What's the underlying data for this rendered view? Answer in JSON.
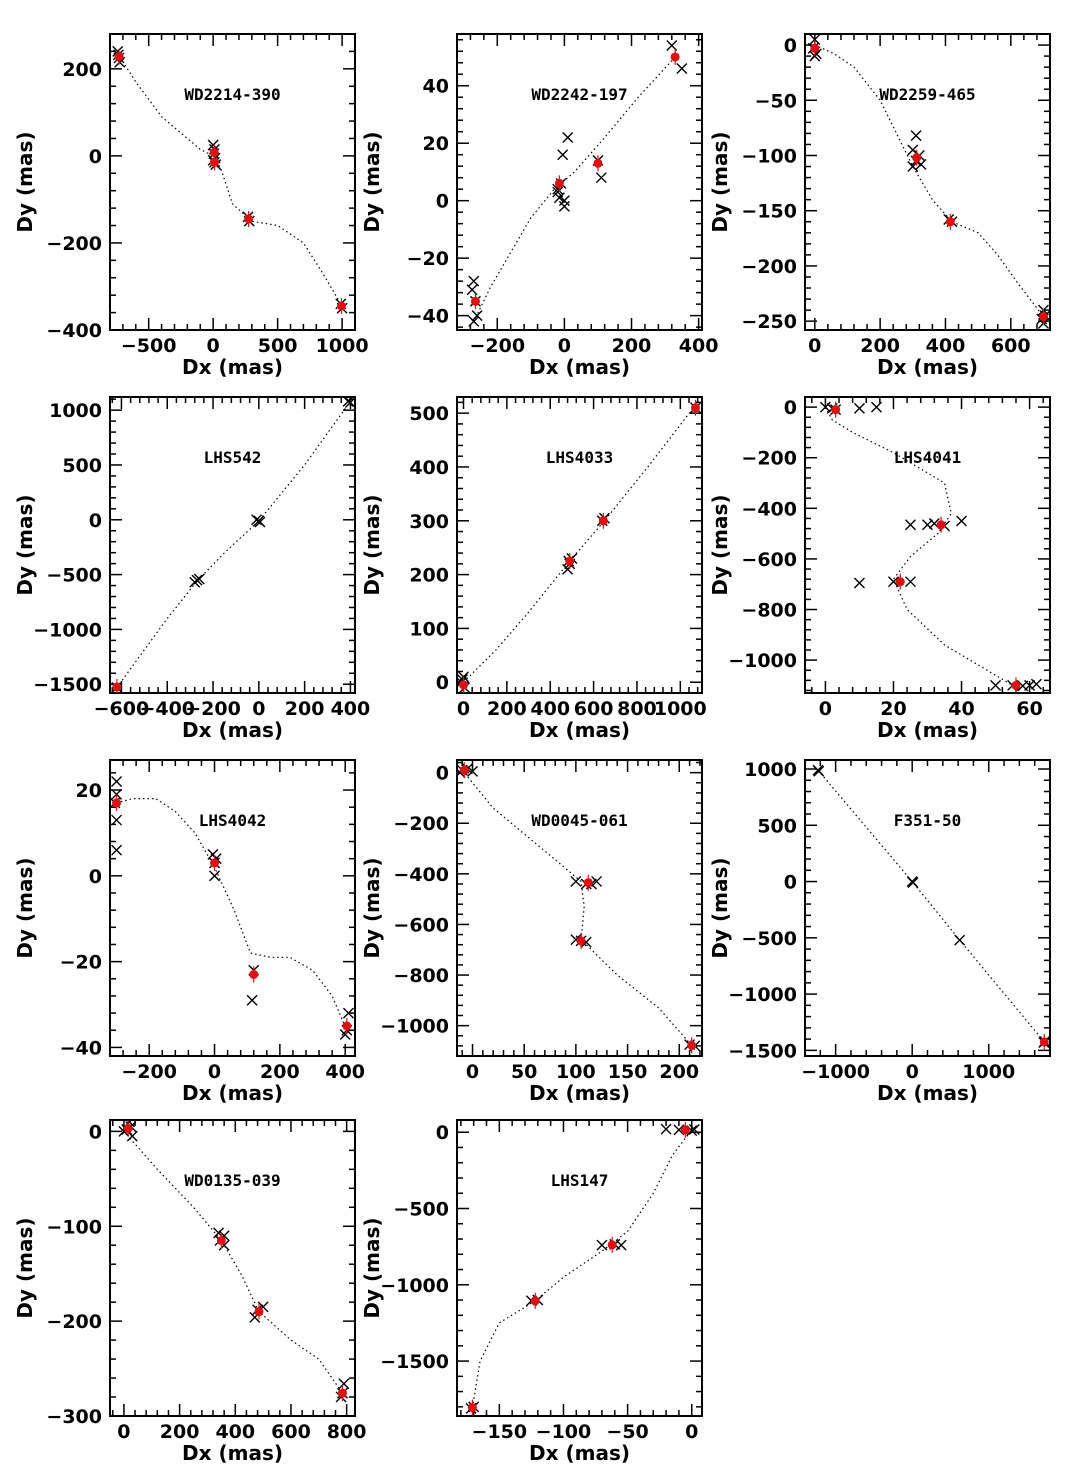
{
  "figure": {
    "colors": {
      "axis": "#000000",
      "cross": "#000000",
      "mean_point": "#dd1111",
      "model_curve": "#000000"
    },
    "x_label_text": "Dx (mas)",
    "y_label_text": "Dy (mas)"
  },
  "chart_data": [
    {
      "type": "scatter",
      "title": "WD2214-390",
      "xlabel": "Dx (mas)",
      "ylabel": "Dy (mas)",
      "xlim": [
        -800,
        1100
      ],
      "ylim": [
        -400,
        280
      ],
      "xticks": [
        -500,
        0,
        500,
        1000
      ],
      "yticks": [
        -400,
        -200,
        0,
        200
      ],
      "crosses": [
        [
          -740,
          240
        ],
        [
          -730,
          225
        ],
        [
          -725,
          215
        ],
        [
          -735,
          232
        ],
        [
          0,
          25
        ],
        [
          10,
          15
        ],
        [
          5,
          5
        ],
        [
          15,
          -5
        ],
        [
          10,
          -15
        ],
        [
          20,
          -20
        ],
        [
          0,
          -10
        ],
        [
          270,
          -140
        ],
        [
          280,
          -150
        ],
        [
          990,
          -340
        ],
        [
          1000,
          -350
        ]
      ],
      "means": [
        [
          -730,
          228
        ],
        [
          8,
          8
        ],
        [
          10,
          -15
        ],
        [
          275,
          -145
        ],
        [
          995,
          -345
        ]
      ],
      "curve": [
        [
          -740,
          235
        ],
        [
          -600,
          170
        ],
        [
          -400,
          90
        ],
        [
          -200,
          40
        ],
        [
          -100,
          15
        ],
        [
          0,
          0
        ],
        [
          60,
          -30
        ],
        [
          150,
          -110
        ],
        [
          300,
          -150
        ],
        [
          500,
          -160
        ],
        [
          700,
          -200
        ],
        [
          850,
          -270
        ],
        [
          1000,
          -345
        ]
      ]
    },
    {
      "type": "scatter",
      "title": "WD2242-197",
      "xlabel": "Dx (mas)",
      "ylabel": "Dy (mas)",
      "xlim": [
        -320,
        410
      ],
      "ylim": [
        -45,
        58
      ],
      "xticks": [
        -200,
        0,
        200,
        400
      ],
      "yticks": [
        -40,
        -20,
        0,
        20,
        40
      ],
      "crosses": [
        [
          320,
          54
        ],
        [
          350,
          46
        ],
        [
          -270,
          -28
        ],
        [
          -275,
          -31
        ],
        [
          -265,
          -35
        ],
        [
          -260,
          -40
        ],
        [
          -270,
          -42
        ],
        [
          -20,
          4
        ],
        [
          -10,
          6
        ],
        [
          -15,
          1
        ],
        [
          0,
          0
        ],
        [
          0,
          -2
        ],
        [
          -5,
          16
        ],
        [
          10,
          22
        ],
        [
          -20,
          3
        ],
        [
          100,
          14
        ],
        [
          110,
          8
        ]
      ],
      "means": [
        [
          330,
          50
        ],
        [
          -265,
          -35
        ],
        [
          -15,
          6
        ],
        [
          100,
          13
        ]
      ],
      "curve": [
        [
          -270,
          -42
        ],
        [
          -220,
          -30
        ],
        [
          -160,
          -18
        ],
        [
          -100,
          -6
        ],
        [
          -30,
          4
        ],
        [
          30,
          10
        ],
        [
          120,
          22
        ],
        [
          220,
          36
        ],
        [
          330,
          50
        ]
      ]
    },
    {
      "type": "scatter",
      "title": "WD2259-465",
      "xlabel": "Dx (mas)",
      "ylabel": "Dy (mas)",
      "xlim": [
        -30,
        720
      ],
      "ylim": [
        -258,
        10
      ],
      "xticks": [
        0,
        200,
        400,
        600
      ],
      "yticks": [
        -250,
        -200,
        -150,
        -100,
        -50,
        0
      ],
      "crosses": [
        [
          0,
          5
        ],
        [
          -5,
          -3
        ],
        [
          5,
          -8
        ],
        [
          0,
          -10
        ],
        [
          310,
          -82
        ],
        [
          300,
          -95
        ],
        [
          320,
          -100
        ],
        [
          310,
          -105
        ],
        [
          300,
          -110
        ],
        [
          325,
          -108
        ],
        [
          420,
          -160
        ],
        [
          410,
          -158
        ],
        [
          700,
          -240
        ],
        [
          705,
          -245
        ],
        [
          695,
          -248
        ],
        [
          700,
          -252
        ]
      ],
      "means": [
        [
          0,
          -3
        ],
        [
          312,
          -102
        ],
        [
          415,
          -160
        ],
        [
          700,
          -246
        ]
      ],
      "curve": [
        [
          0,
          0
        ],
        [
          60,
          -8
        ],
        [
          120,
          -20
        ],
        [
          200,
          -50
        ],
        [
          250,
          -80
        ],
        [
          300,
          -110
        ],
        [
          360,
          -140
        ],
        [
          420,
          -160
        ],
        [
          500,
          -170
        ],
        [
          560,
          -190
        ],
        [
          620,
          -215
        ],
        [
          700,
          -246
        ]
      ]
    },
    {
      "type": "scatter",
      "title": "LHS542",
      "xlabel": "Dx (mas)",
      "ylabel": "Dy (mas)",
      "xlim": [
        -650,
        420
      ],
      "ylim": [
        -1580,
        1120
      ],
      "xticks": [
        -600,
        -400,
        -200,
        0,
        200,
        400
      ],
      "yticks": [
        -1500,
        -1000,
        -500,
        0,
        500,
        1000
      ],
      "crosses": [
        [
          390,
          1080
        ],
        [
          400,
          1070
        ],
        [
          -280,
          -570
        ],
        [
          -270,
          -550
        ],
        [
          -260,
          -540
        ],
        [
          0,
          -10
        ],
        [
          5,
          -20
        ],
        [
          -10,
          0
        ],
        [
          -620,
          -1530
        ]
      ],
      "means": [
        [
          -620,
          -1525
        ]
      ],
      "curve": [
        [
          -620,
          -1530
        ],
        [
          -400,
          -900
        ],
        [
          -270,
          -560
        ],
        [
          -150,
          -300
        ],
        [
          0,
          -10
        ],
        [
          200,
          500
        ],
        [
          400,
          1080
        ]
      ]
    },
    {
      "type": "scatter",
      "title": "LHS4033",
      "xlabel": "Dx (mas)",
      "ylabel": "Dy (mas)",
      "xlim": [
        -30,
        1100
      ],
      "ylim": [
        -20,
        530
      ],
      "xticks": [
        0,
        200,
        400,
        600,
        800,
        1000
      ],
      "yticks": [
        0,
        100,
        200,
        300,
        400,
        500
      ],
      "crosses": [
        [
          0,
          10
        ],
        [
          -10,
          0
        ],
        [
          5,
          -10
        ],
        [
          -5,
          5
        ],
        [
          480,
          210
        ],
        [
          490,
          220
        ],
        [
          500,
          230
        ],
        [
          485,
          225
        ],
        [
          640,
          300
        ],
        [
          650,
          305
        ],
        [
          1070,
          510
        ]
      ],
      "means": [
        [
          0,
          -5
        ],
        [
          490,
          225
        ],
        [
          645,
          300
        ],
        [
          1070,
          510
        ]
      ],
      "curve": [
        [
          0,
          0
        ],
        [
          150,
          60
        ],
        [
          300,
          130
        ],
        [
          490,
          225
        ],
        [
          650,
          300
        ],
        [
          850,
          400
        ],
        [
          1070,
          515
        ]
      ]
    },
    {
      "type": "scatter",
      "title": "LHS4041",
      "xlabel": "Dx (mas)",
      "ylabel": "Dy (mas)",
      "xlim": [
        -6,
        66
      ],
      "ylim": [
        -1130,
        40
      ],
      "xticks": [
        0,
        20,
        40,
        60
      ],
      "yticks": [
        -1000,
        -800,
        -600,
        -400,
        -200,
        0
      ],
      "crosses": [
        [
          0,
          0
        ],
        [
          2,
          -5
        ],
        [
          3,
          -10
        ],
        [
          10,
          -5
        ],
        [
          15,
          0
        ],
        [
          25,
          -465
        ],
        [
          30,
          -465
        ],
        [
          32,
          -460
        ],
        [
          35,
          -470
        ],
        [
          40,
          -450
        ],
        [
          20,
          -690
        ],
        [
          25,
          -690
        ],
        [
          10,
          -695
        ],
        [
          50,
          -1100
        ],
        [
          55,
          -1100
        ],
        [
          60,
          -1100
        ],
        [
          62,
          -1095
        ],
        [
          58,
          -1102
        ]
      ],
      "means": [
        [
          3,
          -10
        ],
        [
          34,
          -465
        ],
        [
          22,
          -690
        ],
        [
          56,
          -1100
        ]
      ],
      "curve": [
        [
          0,
          0
        ],
        [
          2,
          -50
        ],
        [
          8,
          -100
        ],
        [
          20,
          -180
        ],
        [
          35,
          -300
        ],
        [
          37,
          -420
        ],
        [
          33,
          -500
        ],
        [
          25,
          -590
        ],
        [
          20,
          -680
        ],
        [
          24,
          -800
        ],
        [
          35,
          -940
        ],
        [
          55,
          -1100
        ]
      ]
    },
    {
      "type": "scatter",
      "title": "LHS4042",
      "xlabel": "Dx (mas)",
      "ylabel": "Dy (mas)",
      "xlim": [
        -320,
        430
      ],
      "ylim": [
        -42,
        27
      ],
      "xticks": [
        -200,
        0,
        200,
        400
      ],
      "yticks": [
        -40,
        -20,
        0,
        20
      ],
      "crosses": [
        [
          -300,
          22
        ],
        [
          -300,
          19
        ],
        [
          -305,
          17
        ],
        [
          -300,
          13
        ],
        [
          -300,
          6
        ],
        [
          -5,
          5
        ],
        [
          0,
          3
        ],
        [
          0,
          0
        ],
        [
          5,
          4
        ],
        [
          120,
          -22
        ],
        [
          115,
          -29
        ],
        [
          410,
          -32
        ],
        [
          405,
          -36
        ],
        [
          400,
          -37
        ]
      ],
      "means": [
        [
          -300,
          17
        ],
        [
          0,
          3
        ],
        [
          120,
          -23
        ],
        [
          405,
          -35
        ]
      ],
      "curve": [
        [
          -300,
          17
        ],
        [
          -250,
          18
        ],
        [
          -180,
          18
        ],
        [
          -120,
          15
        ],
        [
          -60,
          10
        ],
        [
          0,
          2
        ],
        [
          60,
          -8
        ],
        [
          110,
          -18
        ],
        [
          170,
          -19
        ],
        [
          230,
          -19
        ],
        [
          300,
          -22
        ],
        [
          360,
          -28
        ],
        [
          405,
          -36
        ]
      ]
    },
    {
      "type": "scatter",
      "title": "WD0045-061",
      "xlabel": "Dx (mas)",
      "ylabel": "Dy (mas)",
      "xlim": [
        -15,
        222
      ],
      "ylim": [
        -1120,
        50
      ],
      "xticks": [
        0,
        50,
        100,
        150,
        200
      ],
      "yticks": [
        -1000,
        -800,
        -600,
        -400,
        -200,
        0
      ],
      "crosses": [
        [
          -10,
          10
        ],
        [
          -5,
          15
        ],
        [
          0,
          5
        ],
        [
          -12,
          0
        ],
        [
          100,
          -430
        ],
        [
          110,
          -440
        ],
        [
          115,
          -440
        ],
        [
          120,
          -430
        ],
        [
          100,
          -660
        ],
        [
          105,
          -665
        ],
        [
          110,
          -670
        ],
        [
          210,
          -1075
        ],
        [
          215,
          -1080
        ]
      ],
      "means": [
        [
          -8,
          10
        ],
        [
          112,
          -435
        ],
        [
          105,
          -665
        ],
        [
          212,
          -1078
        ]
      ],
      "curve": [
        [
          -10,
          10
        ],
        [
          20,
          -140
        ],
        [
          70,
          -310
        ],
        [
          105,
          -430
        ],
        [
          108,
          -530
        ],
        [
          105,
          -660
        ],
        [
          140,
          -800
        ],
        [
          180,
          -930
        ],
        [
          212,
          -1078
        ]
      ]
    },
    {
      "type": "scatter",
      "title": "F351-50",
      "xlabel": "Dx (mas)",
      "ylabel": "Dy (mas)",
      "xlim": [
        -1400,
        1800
      ],
      "ylim": [
        -1550,
        1080
      ],
      "xticks": [
        -1000,
        0,
        1000
      ],
      "yticks": [
        -1500,
        -1000,
        -500,
        0,
        500,
        1000
      ],
      "crosses": [
        [
          -1230,
          990
        ],
        [
          -1220,
          980
        ],
        [
          0,
          0
        ],
        [
          10,
          -10
        ],
        [
          620,
          -520
        ],
        [
          1720,
          -1430
        ],
        [
          1730,
          -1420
        ]
      ],
      "means": [
        [
          1725,
          -1425
        ]
      ],
      "curve": [
        [
          -1230,
          990
        ],
        [
          0,
          0
        ],
        [
          620,
          -520
        ],
        [
          1725,
          -1425
        ]
      ]
    },
    {
      "type": "scatter",
      "title": "WD0135-039",
      "xlabel": "Dx (mas)",
      "ylabel": "Dy (mas)",
      "xlim": [
        -50,
        830
      ],
      "ylim": [
        -300,
        12
      ],
      "xticks": [
        0,
        200,
        400,
        600,
        800
      ],
      "yticks": [
        -300,
        -200,
        -100,
        0
      ],
      "crosses": [
        [
          0,
          0
        ],
        [
          10,
          2
        ],
        [
          20,
          10
        ],
        [
          30,
          -5
        ],
        [
          25,
          5
        ],
        [
          340,
          -107
        ],
        [
          360,
          -110
        ],
        [
          345,
          -115
        ],
        [
          360,
          -120
        ],
        [
          480,
          -188
        ],
        [
          500,
          -185
        ],
        [
          470,
          -196
        ],
        [
          790,
          -266
        ],
        [
          785,
          -276
        ],
        [
          780,
          -280
        ]
      ],
      "means": [
        [
          15,
          3
        ],
        [
          350,
          -115
        ],
        [
          485,
          -190
        ],
        [
          785,
          -276
        ]
      ],
      "curve": [
        [
          0,
          0
        ],
        [
          120,
          -40
        ],
        [
          250,
          -80
        ],
        [
          350,
          -115
        ],
        [
          420,
          -150
        ],
        [
          485,
          -190
        ],
        [
          600,
          -220
        ],
        [
          700,
          -240
        ],
        [
          785,
          -276
        ]
      ]
    },
    {
      "type": "scatter",
      "title": "LHS147",
      "xlabel": "Dx (mas)",
      "ylabel": "Dy (mas)",
      "xlim": [
        -183,
        8
      ],
      "ylim": [
        -1860,
        80
      ],
      "xticks": [
        -150,
        -100,
        -50,
        0
      ],
      "yticks": [
        -1500,
        -1000,
        -500,
        0
      ],
      "crosses": [
        [
          -20,
          20
        ],
        [
          -10,
          15
        ],
        [
          0,
          10
        ],
        [
          2,
          18
        ],
        [
          -70,
          -740
        ],
        [
          -60,
          -735
        ],
        [
          -55,
          -740
        ],
        [
          -120,
          -1100
        ],
        [
          -125,
          -1105
        ],
        [
          -170,
          -1800
        ],
        [
          -172,
          -1810
        ]
      ],
      "means": [
        [
          -5,
          15
        ],
        [
          -62,
          -738
        ],
        [
          -122,
          -1105
        ],
        [
          -171,
          -1805
        ]
      ],
      "curve": [
        [
          -171,
          -1805
        ],
        [
          -165,
          -1500
        ],
        [
          -150,
          -1250
        ],
        [
          -122,
          -1105
        ],
        [
          -100,
          -950
        ],
        [
          -70,
          -780
        ],
        [
          -50,
          -650
        ],
        [
          -30,
          -400
        ],
        [
          -15,
          -150
        ],
        [
          0,
          15
        ]
      ]
    }
  ]
}
